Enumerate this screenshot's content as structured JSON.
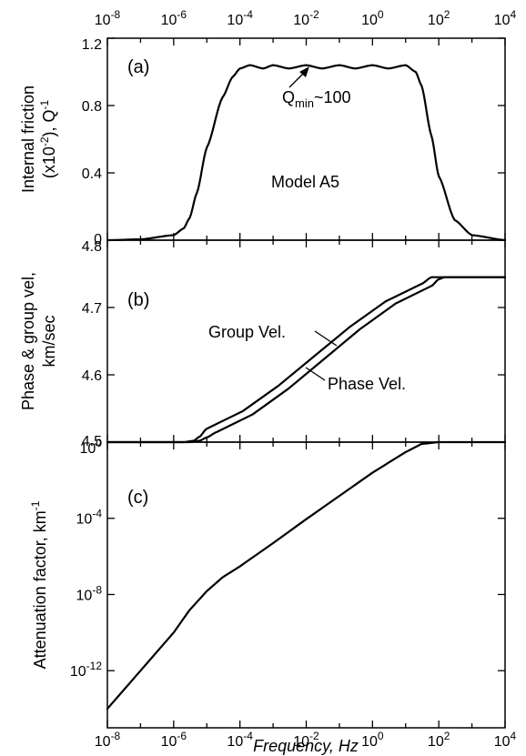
{
  "chart_data": [
    {
      "panel": "(a)",
      "type": "line",
      "x_scale": "log10",
      "xlim": [
        1e-08,
        10000.0
      ],
      "ylim": [
        0,
        1.2
      ],
      "x_top_tick_labels": [
        "10^-8",
        "10^-6",
        "10^-4",
        "10^-2",
        "10^0",
        "10^2",
        "10^4"
      ],
      "y_tick_labels": [
        "0",
        "0.4",
        "0.8",
        "1.2"
      ],
      "y_ticks": [
        0,
        0.4,
        0.8,
        1.2
      ],
      "ylabel_line1": "Internal friction",
      "ylabel_line2": "(x10^-2), Q^-1",
      "annotations": {
        "qmin_main": "Q",
        "qmin_sub": "min",
        "qmin_tail": "~100",
        "model": "Model A5"
      },
      "series": [
        {
          "x": [
            1e-08,
            1e-07,
            1e-06,
            2e-06,
            3e-06,
            5e-06,
            1e-05,
            3e-05,
            6e-05,
            0.0001,
            0.0002,
            0.0005,
            0.001,
            0.003,
            0.01,
            0.03,
            0.1,
            0.3,
            1,
            3,
            10,
            20,
            30,
            60,
            100,
            300,
            1000,
            10000.0
          ],
          "y": [
            0,
            0.005,
            0.03,
            0.07,
            0.13,
            0.28,
            0.55,
            0.85,
            0.97,
            1.02,
            1.04,
            1.02,
            1.04,
            1.02,
            1.04,
            1.02,
            1.04,
            1.02,
            1.04,
            1.02,
            1.04,
            1.0,
            0.92,
            0.62,
            0.38,
            0.12,
            0.03,
            0
          ]
        }
      ]
    },
    {
      "panel": "(b)",
      "type": "line",
      "x_scale": "log10",
      "xlim": [
        1e-08,
        10000.0
      ],
      "ylim": [
        4.5,
        4.8
      ],
      "y_tick_labels": [
        "4.5",
        "4.6",
        "4.7",
        "4.8"
      ],
      "y_ticks": [
        4.5,
        4.6,
        4.7,
        4.8
      ],
      "ylabel_line1": "Phase & group vel,",
      "ylabel_line2": "km/sec",
      "series": [
        {
          "name": "Group Vel.",
          "x": [
            1e-08,
            2e-06,
            4e-06,
            6e-06,
            1e-05,
            30,
            60,
            100,
            10000.0
          ],
          "y": [
            4.5,
            4.5,
            4.502,
            4.508,
            4.52,
            4.735,
            4.745,
            4.745,
            4.745
          ]
        },
        {
          "name": "Phase Vel.",
          "x": [
            1e-08,
            3e-06,
            6e-06,
            1e-05,
            2e-05,
            60,
            100,
            150,
            10000.0
          ],
          "y": [
            4.5,
            4.5,
            4.502,
            4.507,
            4.515,
            4.732,
            4.742,
            4.745,
            4.745
          ]
        }
      ]
    },
    {
      "panel": "(c)",
      "type": "line",
      "x_scale": "log10",
      "y_scale": "log10",
      "xlim": [
        1e-08,
        10000.0
      ],
      "ylim": [
        1e-15,
        1
      ],
      "x_tick_labels": [
        "10^-8",
        "10^-6",
        "10^-4",
        "10^-2",
        "10^0",
        "10^2",
        "10^4"
      ],
      "y_tick_labels": [
        "10^0",
        "10^-4",
        "10^-8",
        "10^-12"
      ],
      "y_ticks": [
        1,
        0.0001,
        1e-08,
        1e-12
      ],
      "ylabel": "Attenuation factor, km^-1",
      "xlabel": "Frequency, Hz",
      "series": [
        {
          "x": [
            1e-08,
            1e-07,
            1e-06,
            3e-06,
            1e-05,
            3e-05,
            0.0001,
            0.001,
            0.01,
            0.1,
            1,
            10,
            30,
            100,
            10000.0
          ],
          "y": [
            1e-14,
            1e-12,
            1e-10,
            1.5e-09,
            1.5e-08,
            8e-08,
            3e-07,
            5e-06,
            9e-05,
            0.0015,
            0.025,
            0.3,
            0.8,
            1.0,
            1.0
          ]
        }
      ]
    }
  ]
}
